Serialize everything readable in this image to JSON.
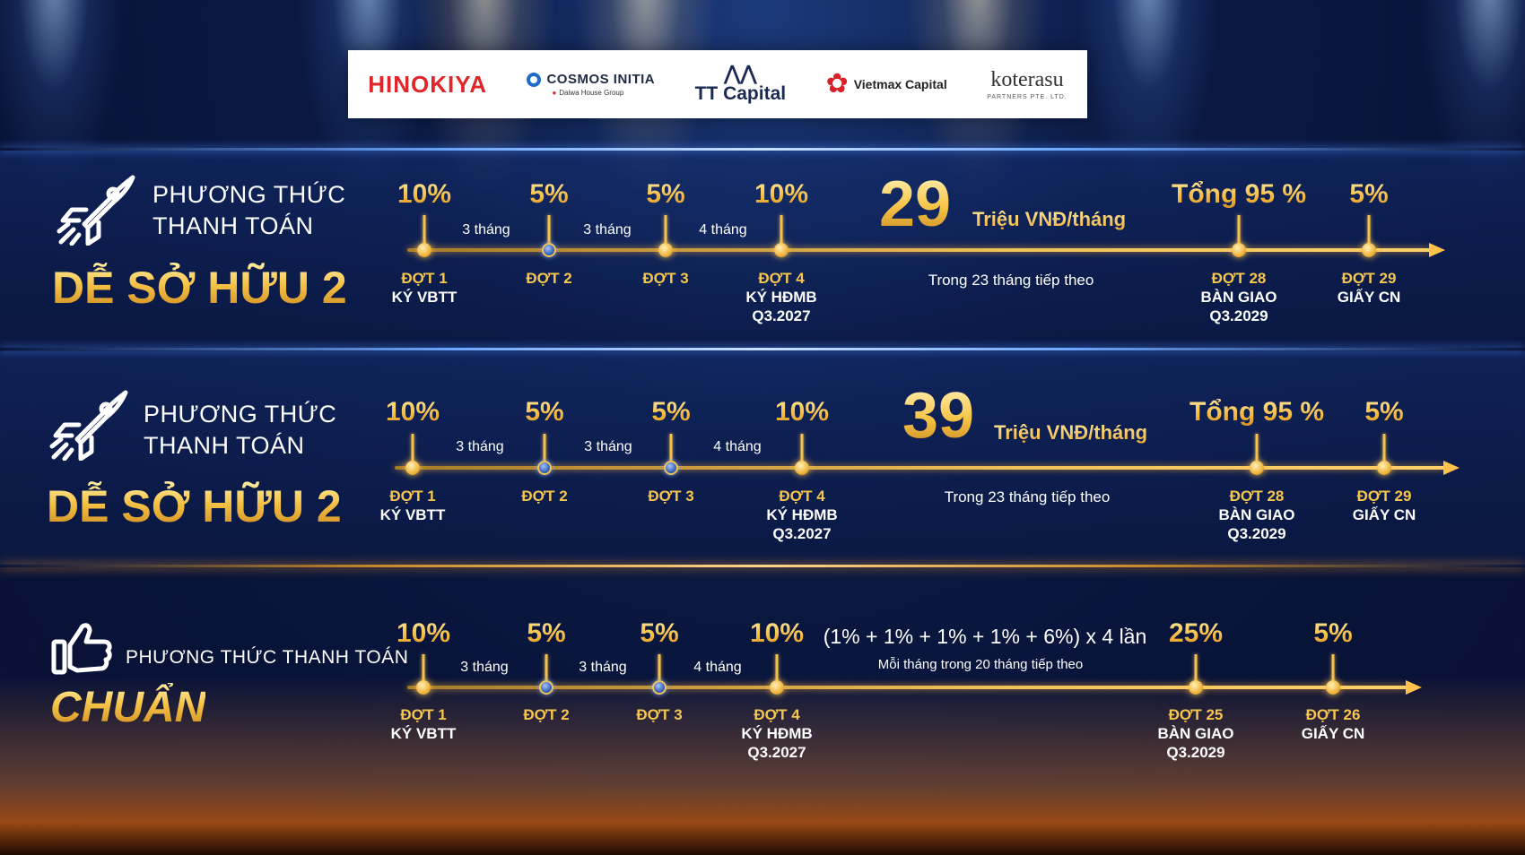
{
  "logos": {
    "hinokiya": "HINOKIYA",
    "cosmos_main": "COSMOS INITIA",
    "cosmos_sub": "Daiwa House Group",
    "tt_mark": "⋀⋀",
    "tt_name": "TT Capital",
    "vietmax": "Vietmax Capital",
    "koterasu": "koterasu",
    "koterasu_sub": "PARTNERS PTE. LTD."
  },
  "sections": [
    {
      "line1": "PHƯƠNG THỨC",
      "line2": "THANH TOÁN",
      "title": "DỄ SỞ HỮU 2",
      "icon": "rocket-icon",
      "big_number": "29",
      "unit": "Triệu VNĐ/tháng",
      "note": "Trong 23 tháng tiếp theo",
      "durations": [
        "3 tháng",
        "3 tháng",
        "4 tháng"
      ],
      "milestones": [
        {
          "pct": "10%",
          "name": "ĐỢT 1",
          "sub1": "KÝ VBTT",
          "sub2": ""
        },
        {
          "pct": "5%",
          "name": "ĐỢT 2",
          "sub1": "",
          "sub2": ""
        },
        {
          "pct": "5%",
          "name": "ĐỢT 3",
          "sub1": "",
          "sub2": ""
        },
        {
          "pct": "10%",
          "name": "ĐỢT 4",
          "sub1": "KÝ HĐMB",
          "sub2": "Q3.2027"
        },
        {
          "pct": "Tổng 95 %",
          "name": "ĐỢT 28",
          "sub1": "BÀN GIAO",
          "sub2": "Q3.2029"
        },
        {
          "pct": "5%",
          "name": "ĐỢT 29",
          "sub1": "GIẤY CN",
          "sub2": ""
        }
      ]
    },
    {
      "line1": "PHƯƠNG THỨC",
      "line2": "THANH TOÁN",
      "title": "DỄ SỞ HỮU 2",
      "icon": "rocket-icon",
      "big_number": "39",
      "unit": "Triệu VNĐ/tháng",
      "note": "Trong 23 tháng tiếp theo",
      "durations": [
        "3 tháng",
        "3 tháng",
        "4 tháng"
      ],
      "milestones": [
        {
          "pct": "10%",
          "name": "ĐỢT 1",
          "sub1": "KÝ VBTT",
          "sub2": ""
        },
        {
          "pct": "5%",
          "name": "ĐỢT 2",
          "sub1": "",
          "sub2": ""
        },
        {
          "pct": "5%",
          "name": "ĐỢT 3",
          "sub1": "",
          "sub2": ""
        },
        {
          "pct": "10%",
          "name": "ĐỢT 4",
          "sub1": "KÝ HĐMB",
          "sub2": "Q3.2027"
        },
        {
          "pct": "Tổng 95 %",
          "name": "ĐỢT 28",
          "sub1": "BÀN GIAO",
          "sub2": "Q3.2029"
        },
        {
          "pct": "5%",
          "name": "ĐỢT 29",
          "sub1": "GIẤY CN",
          "sub2": ""
        }
      ]
    },
    {
      "line1": "PHƯƠNG THỨC THANH TOÁN",
      "title": "CHUẨN",
      "icon": "thumbs-up-icon",
      "formula": "(1% + 1% + 1% + 1% + 6%) x 4 lần",
      "note": "Mỗi tháng trong 20 tháng tiếp theo",
      "durations": [
        "3 tháng",
        "3 tháng",
        "4 tháng"
      ],
      "milestones": [
        {
          "pct": "10%",
          "name": "ĐỢT 1",
          "sub1": "KÝ VBTT",
          "sub2": ""
        },
        {
          "pct": "5%",
          "name": "ĐỢT 2",
          "sub1": "",
          "sub2": ""
        },
        {
          "pct": "5%",
          "name": "ĐỢT 3",
          "sub1": "",
          "sub2": ""
        },
        {
          "pct": "10%",
          "name": "ĐỢT 4",
          "sub1": "KÝ HĐMB",
          "sub2": "Q3.2027"
        },
        {
          "pct": "25%",
          "name": "ĐỢT 25",
          "sub1": "BÀN GIAO",
          "sub2": "Q3.2029"
        },
        {
          "pct": "5%",
          "name": "ĐỢT 26",
          "sub1": "GIẤY CN",
          "sub2": ""
        }
      ]
    }
  ]
}
